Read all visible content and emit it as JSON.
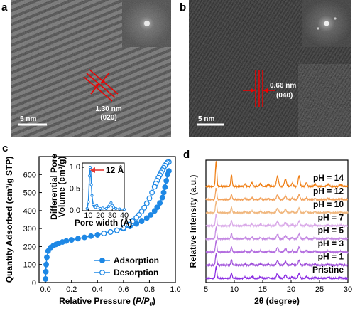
{
  "panels": {
    "a": {
      "label": "a",
      "scale": "5 nm",
      "d_value": "1.30 nm",
      "plane": "(020)"
    },
    "b": {
      "label": "b",
      "scale": "5 nm",
      "d_value": "0.66 nm",
      "plane": "(040)"
    },
    "c": {
      "label": "c"
    },
    "d": {
      "label": "d"
    }
  },
  "chart_data": [
    {
      "id": "c",
      "type": "scatter",
      "xlabel_main": "Relative Pressure (",
      "xlabel_var": "P/P",
      "xlabel_sub": "0",
      "xlabel_end": ")",
      "ylabel": "Quantity Adsorbed (cm³/g STP)",
      "xlim": [
        -0.05,
        1.0
      ],
      "ylim": [
        0,
        700
      ],
      "xticks": [
        "0.0",
        "0.2",
        "0.4",
        "0.6",
        "0.8",
        "1.0"
      ],
      "yticks": [
        "0",
        "100",
        "200",
        "300",
        "400",
        "500",
        "600"
      ],
      "legend_position": "bottom-right",
      "color": "#1e88e5",
      "series": [
        {
          "name": "Adsorption",
          "filled": true,
          "x": [
            0.0,
            0.002,
            0.005,
            0.01,
            0.02,
            0.04,
            0.06,
            0.08,
            0.1,
            0.13,
            0.16,
            0.2,
            0.25,
            0.3,
            0.35,
            0.4,
            0.45,
            0.5,
            0.55,
            0.6,
            0.65,
            0.7,
            0.74,
            0.78,
            0.81,
            0.84,
            0.86,
            0.88,
            0.9,
            0.91,
            0.92,
            0.93,
            0.94,
            0.95
          ],
          "y": [
            20,
            60,
            100,
            140,
            175,
            195,
            205,
            212,
            218,
            225,
            231,
            237,
            244,
            251,
            258,
            265,
            273,
            281,
            290,
            300,
            312,
            326,
            340,
            358,
            376,
            398,
            418,
            442,
            472,
            500,
            530,
            565,
            600,
            620
          ]
        },
        {
          "name": "Desorption",
          "filled": false,
          "x": [
            0.95,
            0.94,
            0.93,
            0.92,
            0.91,
            0.9,
            0.89,
            0.88,
            0.87,
            0.86,
            0.85,
            0.84,
            0.82,
            0.8,
            0.78,
            0.76,
            0.74,
            0.72,
            0.7,
            0.67,
            0.64,
            0.6,
            0.55,
            0.5,
            0.45
          ],
          "y": [
            670,
            668,
            660,
            650,
            638,
            625,
            612,
            597,
            582,
            566,
            550,
            532,
            500,
            468,
            440,
            416,
            395,
            376,
            360,
            340,
            322,
            304,
            290,
            281,
            273
          ]
        }
      ],
      "inset": {
        "type": "line",
        "ylabel_lines": [
          "Differential Pore",
          "Volume (cm³/g)"
        ],
        "xlabel": "Pore width (Å)",
        "xlim": [
          5,
          40
        ],
        "ylim": [
          0,
          1.1
        ],
        "xticks": [
          "10",
          "20",
          "30",
          "40"
        ],
        "yticks": [
          "0.0",
          "0.5",
          "1.0"
        ],
        "annotation": "12 Å",
        "annotation_color": "#1e88e5",
        "arrow_color": "#e53935",
        "x": [
          9,
          10,
          11,
          11.5,
          12,
          12.5,
          13,
          14,
          15,
          16,
          17,
          18,
          20,
          22,
          25,
          27,
          28,
          29,
          30,
          31,
          33,
          36,
          40
        ],
        "y": [
          0.05,
          0.2,
          0.8,
          1.0,
          0.95,
          0.6,
          0.35,
          0.15,
          0.1,
          0.08,
          0.12,
          0.07,
          0.05,
          0.06,
          0.05,
          0.1,
          0.14,
          0.18,
          0.12,
          0.08,
          0.05,
          0.04,
          0.03
        ]
      }
    },
    {
      "id": "d",
      "type": "line",
      "xlabel": "2θ (degree)",
      "ylabel": "Relative Intensity (a.u.)",
      "xlim": [
        5,
        30
      ],
      "xticks": [
        "5",
        "10",
        "15",
        "20",
        "25",
        "30"
      ],
      "peaks": [
        {
          "pos": 6.8,
          "h": 1.0,
          "w": 0.12
        },
        {
          "pos": 9.5,
          "h": 0.45,
          "w": 0.12
        },
        {
          "pos": 11.9,
          "h": 0.1,
          "w": 0.15
        },
        {
          "pos": 13.1,
          "h": 0.15,
          "w": 0.15
        },
        {
          "pos": 14.6,
          "h": 0.12,
          "w": 0.15
        },
        {
          "pos": 16.0,
          "h": 0.08,
          "w": 0.15
        },
        {
          "pos": 17.6,
          "h": 0.38,
          "w": 0.18
        },
        {
          "pos": 19.0,
          "h": 0.28,
          "w": 0.18
        },
        {
          "pos": 20.2,
          "h": 0.12,
          "w": 0.15
        },
        {
          "pos": 21.4,
          "h": 0.42,
          "w": 0.15
        },
        {
          "pos": 22.7,
          "h": 0.15,
          "w": 0.15
        },
        {
          "pos": 24.2,
          "h": 0.1,
          "w": 0.15
        },
        {
          "pos": 26.5,
          "h": 0.08,
          "w": 0.2
        },
        {
          "pos": 28.7,
          "h": 0.06,
          "w": 0.2
        }
      ],
      "series": [
        {
          "name": "pH = 14",
          "color": "#ef7d12",
          "scale": 1.0
        },
        {
          "name": "pH = 12",
          "color": "#f2a25c",
          "scale": 0.45
        },
        {
          "name": "pH = 10",
          "color": "#f0b77e",
          "scale": 0.45
        },
        {
          "name": "pH = 7",
          "color": "#d9a8e8",
          "scale": 0.45
        },
        {
          "name": "pH = 5",
          "color": "#c489e2",
          "scale": 0.45
        },
        {
          "name": "pH = 3",
          "color": "#b36ddf",
          "scale": 0.45
        },
        {
          "name": "pH = 1",
          "color": "#9d4bd9",
          "scale": 0.45
        },
        {
          "name": "Pristine",
          "color": "#8a2be2",
          "scale": 0.45
        }
      ]
    }
  ]
}
